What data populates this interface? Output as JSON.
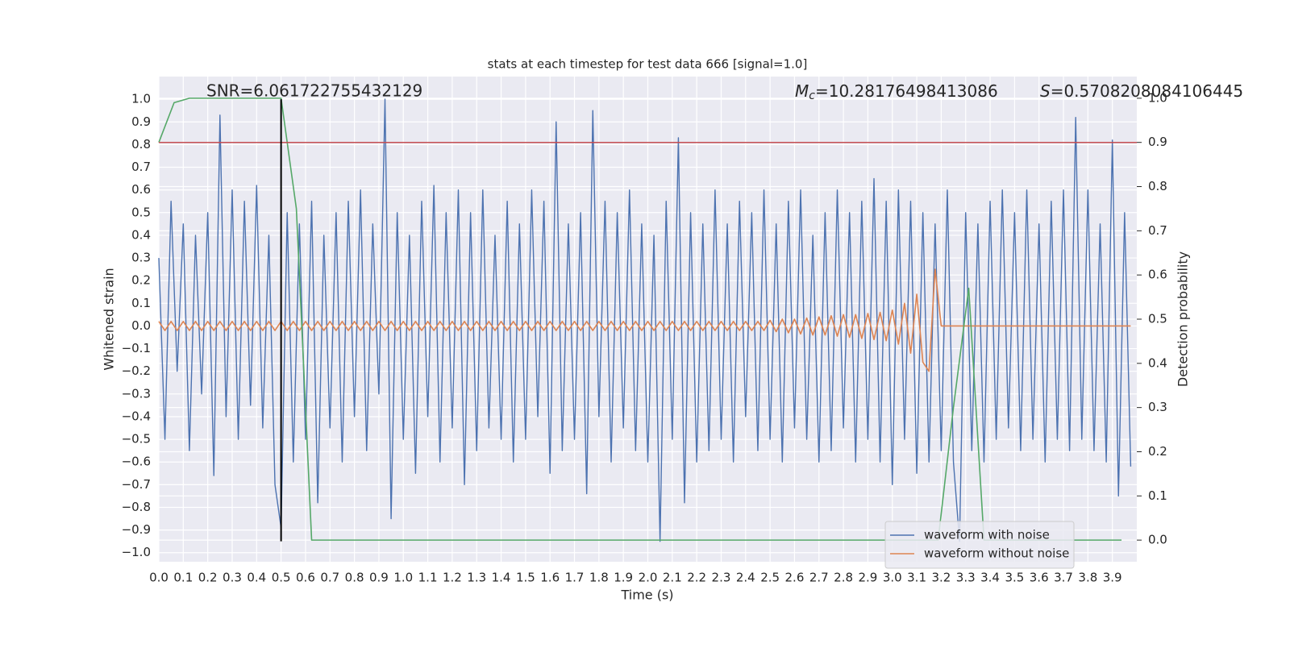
{
  "chart_data": {
    "type": "line",
    "title": "stats at each timestep for test data 666 [signal=1.0]",
    "x_label": "Time (s)",
    "y_label": "Whitened strain",
    "y2_label": "Detection probability",
    "annotations": {
      "snr": "SNR=6.061722755432129",
      "mc": {
        "symbol": "M",
        "subscript": "c",
        "text": "=10.28176498413086"
      },
      "s": {
        "symbol": "S",
        "text": "=0.5708208084106445"
      }
    },
    "xlim": [
      0,
      4.0
    ],
    "ylim": [
      -1.04,
      1.1
    ],
    "y2lim": [
      -0.049,
      1.049
    ],
    "grid": true,
    "legend": "lower right",
    "xticks": [
      {
        "value": 0,
        "label": "0.0"
      },
      {
        "value": 0.1,
        "label": "0.1"
      },
      {
        "value": 0.2,
        "label": "0.2"
      },
      {
        "value": 0.3,
        "label": "0.3"
      },
      {
        "value": 0.4,
        "label": "0.4"
      },
      {
        "value": 0.5,
        "label": "0.5"
      },
      {
        "value": 0.6,
        "label": "0.6"
      },
      {
        "value": 0.7,
        "label": "0.7"
      },
      {
        "value": 0.8,
        "label": "0.8"
      },
      {
        "value": 0.9,
        "label": "0.9"
      },
      {
        "value": 1,
        "label": "1.0"
      },
      {
        "value": 1.1,
        "label": "1.1"
      },
      {
        "value": 1.2,
        "label": "1.2"
      },
      {
        "value": 1.3,
        "label": "1.3"
      },
      {
        "value": 1.4,
        "label": "1.4"
      },
      {
        "value": 1.5,
        "label": "1.5"
      },
      {
        "value": 1.6,
        "label": "1.6"
      },
      {
        "value": 1.7,
        "label": "1.7"
      },
      {
        "value": 1.8,
        "label": "1.8"
      },
      {
        "value": 1.9,
        "label": "1.9"
      },
      {
        "value": 2,
        "label": "2.0"
      },
      {
        "value": 2.1,
        "label": "2.1"
      },
      {
        "value": 2.2,
        "label": "2.2"
      },
      {
        "value": 2.3,
        "label": "2.3"
      },
      {
        "value": 2.4,
        "label": "2.4"
      },
      {
        "value": 2.5,
        "label": "2.5"
      },
      {
        "value": 2.6,
        "label": "2.6"
      },
      {
        "value": 2.7,
        "label": "2.7"
      },
      {
        "value": 2.8,
        "label": "2.8"
      },
      {
        "value": 2.9,
        "label": "2.9"
      },
      {
        "value": 3,
        "label": "3.0"
      },
      {
        "value": 3.1,
        "label": "3.1"
      },
      {
        "value": 3.2,
        "label": "3.2"
      },
      {
        "value": 3.3,
        "label": "3.3"
      },
      {
        "value": 3.4,
        "label": "3.4"
      },
      {
        "value": 3.5,
        "label": "3.5"
      },
      {
        "value": 3.6,
        "label": "3.6"
      },
      {
        "value": 3.7,
        "label": "3.7"
      },
      {
        "value": 3.8,
        "label": "3.8"
      },
      {
        "value": 3.9,
        "label": "3.9"
      }
    ],
    "yticks": [
      {
        "value": 1,
        "label": "1.0"
      },
      {
        "value": 0.9,
        "label": "0.9"
      },
      {
        "value": 0.8,
        "label": "0.8"
      },
      {
        "value": 0.7,
        "label": "0.7"
      },
      {
        "value": 0.6,
        "label": "0.6"
      },
      {
        "value": 0.5,
        "label": "0.5"
      },
      {
        "value": 0.4,
        "label": "0.4"
      },
      {
        "value": 0.3,
        "label": "0.3"
      },
      {
        "value": 0.2,
        "label": "0.2"
      },
      {
        "value": 0.1,
        "label": "0.1"
      },
      {
        "value": 0,
        "label": "0.0"
      },
      {
        "value": -0.1,
        "label": "−0.1"
      },
      {
        "value": -0.2,
        "label": "−0.2"
      },
      {
        "value": -0.3,
        "label": "−0.3"
      },
      {
        "value": -0.4,
        "label": "−0.4"
      },
      {
        "value": -0.5,
        "label": "−0.5"
      },
      {
        "value": -0.6,
        "label": "−0.6"
      },
      {
        "value": -0.7,
        "label": "−0.7"
      },
      {
        "value": -0.8,
        "label": "−0.8"
      },
      {
        "value": -0.9,
        "label": "−0.9"
      },
      {
        "value": -1,
        "label": "−1.0"
      }
    ],
    "y2ticks": [
      {
        "value": 0,
        "label": "0.0"
      },
      {
        "value": 0.1,
        "label": "0.1"
      },
      {
        "value": 0.2,
        "label": "0.2"
      },
      {
        "value": 0.3,
        "label": "0.3"
      },
      {
        "value": 0.4,
        "label": "0.4"
      },
      {
        "value": 0.5,
        "label": "0.5"
      },
      {
        "value": 0.6,
        "label": "0.6"
      },
      {
        "value": 0.7,
        "label": "0.7"
      },
      {
        "value": 0.8,
        "label": "0.8"
      },
      {
        "value": 0.9,
        "label": "0.9"
      },
      {
        "value": 1,
        "label": "1.0"
      }
    ],
    "threshold": {
      "value": 0.9,
      "axis": "y2",
      "color": "#c44e52"
    },
    "vline": {
      "x": 0.5,
      "ymin": -0.95,
      "ymax": 1.0,
      "color": "#000000"
    },
    "x": [
      0,
      0.025,
      0.05,
      0.075,
      0.1,
      0.125,
      0.15,
      0.175,
      0.2,
      0.225,
      0.25,
      0.275,
      0.3,
      0.325,
      0.35,
      0.375,
      0.4,
      0.425,
      0.45,
      0.475,
      0.5,
      0.525,
      0.55,
      0.575,
      0.6,
      0.625,
      0.65,
      0.675,
      0.7,
      0.725,
      0.75,
      0.775,
      0.8,
      0.825,
      0.85,
      0.875,
      0.9,
      0.925,
      0.95,
      0.975,
      1,
      1.025,
      1.05,
      1.075,
      1.1,
      1.125,
      1.15,
      1.175,
      1.2,
      1.225,
      1.25,
      1.275,
      1.3,
      1.325,
      1.35,
      1.375,
      1.4,
      1.425,
      1.45,
      1.475,
      1.5,
      1.525,
      1.55,
      1.575,
      1.6,
      1.625,
      1.65,
      1.675,
      1.7,
      1.725,
      1.75,
      1.775,
      1.8,
      1.825,
      1.85,
      1.875,
      1.9,
      1.925,
      1.95,
      1.975,
      2,
      2.025,
      2.05,
      2.075,
      2.1,
      2.125,
      2.15,
      2.175,
      2.2,
      2.225,
      2.25,
      2.275,
      2.3,
      2.325,
      2.35,
      2.375,
      2.4,
      2.425,
      2.45,
      2.475,
      2.5,
      2.525,
      2.55,
      2.575,
      2.6,
      2.625,
      2.65,
      2.675,
      2.7,
      2.725,
      2.75,
      2.775,
      2.8,
      2.825,
      2.85,
      2.875,
      2.9,
      2.925,
      2.95,
      2.975,
      3,
      3.025,
      3.05,
      3.075,
      3.1,
      3.125,
      3.15,
      3.175,
      3.2,
      3.225,
      3.25,
      3.275,
      3.3,
      3.325,
      3.35,
      3.375,
      3.4,
      3.425,
      3.45,
      3.475,
      3.5,
      3.525,
      3.55,
      3.575,
      3.6,
      3.625,
      3.65,
      3.675,
      3.7,
      3.725,
      3.75,
      3.775,
      3.8,
      3.825,
      3.85,
      3.875,
      3.9,
      3.925,
      3.95,
      3.975
    ],
    "series": [
      {
        "name": "waveform with noise",
        "color": "#4c72b0",
        "values": [
          0.3,
          -0.5,
          0.55,
          -0.2,
          0.45,
          -0.55,
          0.4,
          -0.3,
          0.5,
          -0.66,
          0.93,
          -0.4,
          0.6,
          -0.5,
          0.55,
          -0.35,
          0.62,
          -0.45,
          0.4,
          -0.7,
          -0.89,
          0.5,
          -0.6,
          0.45,
          -0.5,
          0.55,
          -0.78,
          0.4,
          -0.45,
          0.5,
          -0.6,
          0.55,
          -0.4,
          0.6,
          -0.55,
          0.45,
          -0.3,
          1.0,
          -0.85,
          0.5,
          -0.5,
          0.4,
          -0.65,
          0.55,
          -0.4,
          0.62,
          -0.6,
          0.5,
          -0.45,
          0.6,
          -0.7,
          0.5,
          -0.55,
          0.6,
          -0.45,
          0.4,
          -0.5,
          0.55,
          -0.6,
          0.45,
          -0.5,
          0.6,
          -0.4,
          0.55,
          -0.65,
          0.9,
          -0.55,
          0.45,
          -0.5,
          0.5,
          -0.74,
          0.95,
          -0.4,
          0.55,
          -0.6,
          0.5,
          -0.45,
          0.6,
          -0.55,
          0.45,
          -0.6,
          0.4,
          -0.95,
          0.55,
          -0.5,
          0.83,
          -0.78,
          0.5,
          -0.6,
          0.45,
          -0.55,
          0.6,
          -0.5,
          0.45,
          -0.6,
          0.55,
          -0.4,
          0.5,
          -0.55,
          0.6,
          -0.5,
          0.45,
          -0.6,
          0.55,
          -0.45,
          0.6,
          -0.5,
          0.4,
          -0.6,
          0.5,
          -0.55,
          0.6,
          -0.45,
          0.5,
          -0.6,
          0.55,
          -0.5,
          0.65,
          -0.6,
          0.55,
          -0.7,
          0.6,
          -0.5,
          0.55,
          -0.65,
          0.5,
          -0.6,
          0.45,
          -0.55,
          0.6,
          -0.6,
          -0.95,
          0.5,
          -0.55,
          0.45,
          -0.6,
          0.55,
          -0.5,
          0.6,
          -0.45,
          0.5,
          -0.55,
          0.6,
          -0.5,
          0.45,
          -0.6,
          0.55,
          -0.5,
          0.6,
          -0.55,
          0.92,
          -0.5,
          0.6,
          -0.55,
          0.45,
          -0.6,
          0.82,
          -0.75,
          0.5,
          -0.62
        ]
      },
      {
        "name": "waveform without noise",
        "color": "#dd8452",
        "values": [
          0.02,
          -0.02,
          0.02,
          -0.02,
          0.02,
          -0.02,
          0.02,
          -0.02,
          0.02,
          -0.02,
          0.02,
          -0.02,
          0.02,
          -0.02,
          0.02,
          -0.02,
          0.02,
          -0.02,
          0.02,
          -0.02,
          0.02,
          -0.02,
          0.02,
          -0.02,
          0.02,
          -0.02,
          0.02,
          -0.02,
          0.02,
          -0.02,
          0.02,
          -0.02,
          0.02,
          -0.02,
          0.02,
          -0.02,
          0.02,
          -0.02,
          0.02,
          -0.02,
          0.02,
          -0.02,
          0.02,
          -0.02,
          0.02,
          -0.02,
          0.02,
          -0.02,
          0.02,
          -0.02,
          0.02,
          -0.02,
          0.02,
          -0.02,
          0.02,
          -0.02,
          0.02,
          -0.02,
          0.02,
          -0.02,
          0.02,
          -0.02,
          0.02,
          -0.02,
          0.02,
          -0.02,
          0.02,
          -0.02,
          0.02,
          -0.02,
          0.02,
          -0.02,
          0.02,
          -0.02,
          0.02,
          -0.02,
          0.02,
          -0.02,
          0.02,
          -0.02,
          0.02,
          -0.02,
          0.02,
          -0.02,
          0.02,
          -0.02,
          0.02,
          -0.02,
          0.02,
          -0.02,
          0.02,
          -0.02,
          0.02,
          -0.02,
          0.02,
          -0.02,
          0.02,
          -0.02,
          0.02,
          -0.02,
          0.025,
          -0.025,
          0.03,
          -0.03,
          0.03,
          -0.035,
          0.035,
          -0.04,
          0.04,
          -0.04,
          0.045,
          -0.045,
          0.05,
          -0.05,
          0.05,
          -0.055,
          0.055,
          -0.06,
          0.06,
          -0.065,
          0.07,
          -0.08,
          0.1,
          -0.12,
          0.14,
          -0.16,
          -0.2,
          0.25,
          0,
          0,
          0,
          0,
          0,
          0,
          0,
          0,
          0,
          0,
          0,
          0,
          0,
          0,
          0,
          0,
          0,
          0,
          0,
          0,
          0,
          0,
          0,
          0,
          0,
          0,
          0,
          0,
          0,
          0,
          0,
          0
        ]
      },
      {
        "color": "#55a868",
        "axis": "y2",
        "x": [
          0,
          0.0625,
          0.125,
          0.1875,
          0.25,
          0.3125,
          0.375,
          0.4375,
          0.5,
          0.5625,
          0.625,
          0.6875,
          0.75,
          0.8125,
          0.875,
          0.9375,
          1,
          1.0625,
          1.125,
          1.1875,
          1.25,
          1.3125,
          1.375,
          1.4375,
          1.5,
          1.5625,
          1.625,
          1.6875,
          1.75,
          1.8125,
          1.875,
          1.9375,
          2,
          2.0625,
          2.125,
          2.1875,
          2.25,
          2.3125,
          2.375,
          2.4375,
          2.5,
          2.5625,
          2.625,
          2.6875,
          2.75,
          2.8125,
          2.875,
          2.9375,
          3,
          3.0625,
          3.125,
          3.1875,
          3.25,
          3.3125,
          3.375,
          3.4375,
          3.5,
          3.5625,
          3.625,
          3.6875,
          3.75,
          3.8125,
          3.875,
          3.9375
        ],
        "values": [
          0.9,
          0.99,
          1,
          1,
          1,
          1,
          1,
          1,
          1,
          0.75,
          0,
          0,
          0,
          0,
          0,
          0,
          0,
          0,
          0,
          0,
          0,
          0,
          0,
          0,
          0,
          0,
          0,
          0,
          0,
          0,
          0,
          0,
          0,
          0,
          0,
          0,
          0,
          0,
          0,
          0,
          0,
          0,
          0,
          0,
          0,
          0,
          0,
          0,
          0,
          0,
          0,
          0,
          0.3,
          0.57,
          0,
          0,
          0,
          0,
          0,
          0,
          0,
          0,
          0,
          0
        ]
      }
    ]
  }
}
